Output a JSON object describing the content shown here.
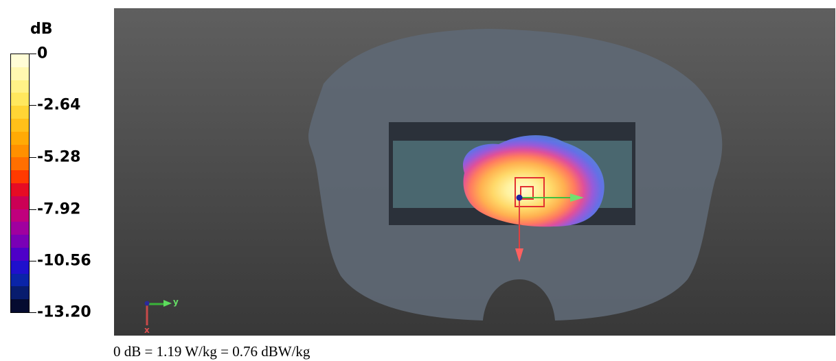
{
  "legend": {
    "unit": "dB",
    "ticks": [
      "0",
      "-2.64",
      "-5.28",
      "-7.92",
      "-10.56",
      "-13.20"
    ],
    "colors": [
      "#fffdd6",
      "#fff8b0",
      "#fff287",
      "#ffe85e",
      "#ffd535",
      "#ffc019",
      "#ffaa05",
      "#ff9000",
      "#ff6f00",
      "#ff3a00",
      "#e60c24",
      "#cc0055",
      "#c0007d",
      "#a0009f",
      "#7a00b6",
      "#4e00c8",
      "#1f10cc",
      "#0a24a8",
      "#081c6e",
      "#050b30"
    ]
  },
  "axes": {
    "y_label": "y",
    "x_label": "x"
  },
  "footer": {
    "text": "0 dB = 1.19 W/kg = 0.76 dBW/kg"
  },
  "viewport": {
    "background": "#4a4a4a",
    "phantom_color": "#5e6874"
  }
}
